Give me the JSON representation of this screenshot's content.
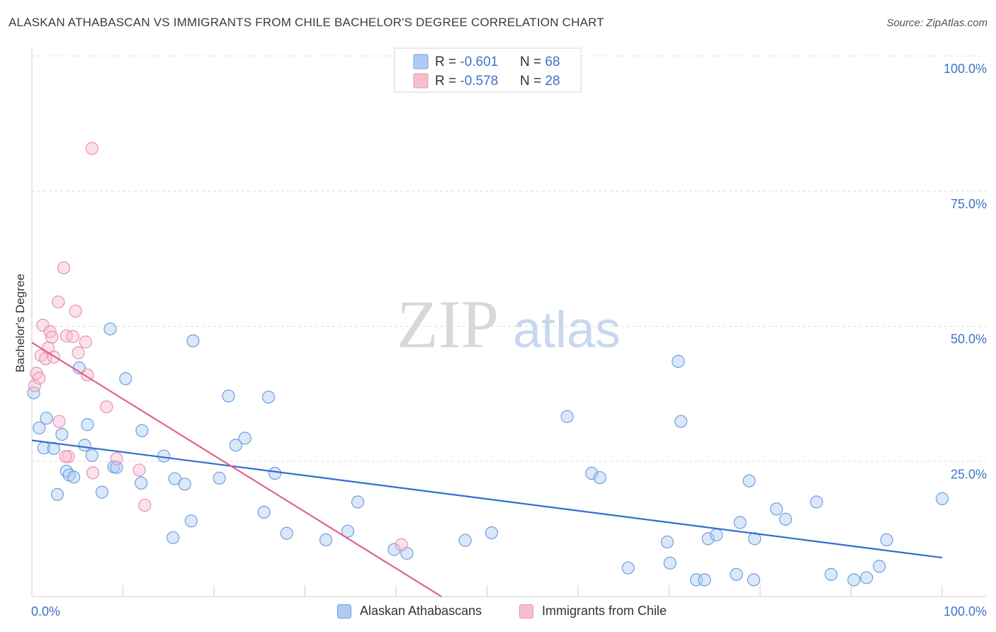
{
  "title": "ALASKAN ATHABASCAN VS IMMIGRANTS FROM CHILE BACHELOR'S DEGREE CORRELATION CHART",
  "source": "Source: ZipAtlas.com",
  "watermark": {
    "zip": "ZIP",
    "atlas": "atlas"
  },
  "colors": {
    "blue_fill": "#aecbf2",
    "blue_stroke": "#6d9fe0",
    "blue_line": "#2f6fce",
    "pink_fill": "#f6bfd0",
    "pink_stroke": "#e990ad",
    "pink_line": "#e0608e",
    "axis_text": "#3d74c8",
    "grid": "#dddddd"
  },
  "legend_top": {
    "rows": [
      {
        "r_label": "R = ",
        "r_value": "-0.601",
        "n_label": "N = ",
        "n_value": "68",
        "color": "blue"
      },
      {
        "r_label": "R = ",
        "r_value": "-0.578",
        "n_label": "N = ",
        "n_value": "28",
        "color": "pink"
      }
    ]
  },
  "legend_bottom": [
    {
      "label": "Alaskan Athabascans",
      "color": "blue"
    },
    {
      "label": "Immigrants from Chile",
      "color": "pink"
    }
  ],
  "chart_data": {
    "type": "scatter",
    "xlabel": "",
    "ylabel": "Bachelor's Degree",
    "xlim": [
      0,
      100
    ],
    "ylim": [
      0,
      100
    ],
    "x_tick_labels": [
      {
        "value": 0,
        "label": "0.0%"
      },
      {
        "value": 100,
        "label": "100.0%"
      }
    ],
    "y_tick_labels": [
      {
        "value": 100,
        "label": "100.0%"
      },
      {
        "value": 75,
        "label": "75.0%"
      },
      {
        "value": 50,
        "label": "50.0%"
      },
      {
        "value": 25,
        "label": "25.0%"
      }
    ],
    "grid": true,
    "series": [
      {
        "name": "Alaskan Athabascans",
        "color": "blue",
        "trend": {
          "x": [
            0,
            100
          ],
          "y": [
            28.9,
            7.2
          ]
        },
        "points": [
          [
            0.2,
            37.7
          ],
          [
            0.8,
            31.2
          ],
          [
            1.3,
            27.5
          ],
          [
            1.6,
            33.0
          ],
          [
            2.4,
            27.4
          ],
          [
            2.8,
            18.9
          ],
          [
            3.3,
            30.0
          ],
          [
            3.8,
            23.2
          ],
          [
            4.1,
            22.5
          ],
          [
            4.6,
            22.1
          ],
          [
            5.2,
            42.3
          ],
          [
            5.8,
            28.0
          ],
          [
            6.1,
            31.8
          ],
          [
            6.6,
            26.1
          ],
          [
            7.7,
            19.3
          ],
          [
            8.6,
            49.5
          ],
          [
            9.0,
            24.0
          ],
          [
            9.3,
            23.9
          ],
          [
            10.3,
            40.3
          ],
          [
            12.0,
            21.0
          ],
          [
            12.1,
            30.7
          ],
          [
            14.5,
            26.0
          ],
          [
            15.5,
            10.9
          ],
          [
            15.7,
            21.8
          ],
          [
            16.8,
            20.8
          ],
          [
            17.5,
            14.0
          ],
          [
            17.7,
            47.3
          ],
          [
            20.6,
            21.9
          ],
          [
            21.6,
            37.1
          ],
          [
            22.4,
            28.0
          ],
          [
            23.4,
            29.3
          ],
          [
            25.5,
            15.6
          ],
          [
            26.0,
            36.9
          ],
          [
            26.7,
            22.8
          ],
          [
            28.0,
            11.7
          ],
          [
            32.3,
            10.5
          ],
          [
            34.7,
            12.1
          ],
          [
            35.8,
            17.5
          ],
          [
            39.8,
            8.7
          ],
          [
            41.2,
            8.0
          ],
          [
            47.6,
            10.4
          ],
          [
            50.5,
            11.8
          ],
          [
            58.8,
            33.3
          ],
          [
            61.5,
            22.8
          ],
          [
            62.4,
            22.0
          ],
          [
            65.5,
            5.3
          ],
          [
            69.8,
            10.1
          ],
          [
            70.1,
            6.2
          ],
          [
            71.0,
            43.5
          ],
          [
            71.3,
            32.4
          ],
          [
            73.0,
            3.1
          ],
          [
            73.9,
            3.1
          ],
          [
            74.3,
            10.7
          ],
          [
            75.2,
            11.4
          ],
          [
            77.4,
            4.1
          ],
          [
            77.8,
            13.7
          ],
          [
            79.3,
            3.1
          ],
          [
            79.4,
            10.7
          ],
          [
            78.8,
            21.4
          ],
          [
            81.8,
            16.2
          ],
          [
            82.8,
            14.3
          ],
          [
            86.2,
            17.5
          ],
          [
            87.8,
            4.1
          ],
          [
            90.3,
            3.1
          ],
          [
            91.7,
            3.5
          ],
          [
            93.1,
            5.6
          ],
          [
            93.9,
            10.5
          ],
          [
            100.0,
            18.1
          ]
        ]
      },
      {
        "name": "Immigrants from Chile",
        "color": "pink",
        "trend": {
          "x": [
            0,
            45
          ],
          "y": [
            47.0,
            0
          ]
        },
        "points": [
          [
            0.3,
            39.0
          ],
          [
            0.5,
            41.3
          ],
          [
            0.8,
            40.4
          ],
          [
            1.0,
            44.6
          ],
          [
            1.2,
            50.2
          ],
          [
            1.5,
            44.0
          ],
          [
            1.8,
            46.0
          ],
          [
            2.0,
            49.0
          ],
          [
            2.2,
            48.0
          ],
          [
            2.4,
            44.3
          ],
          [
            2.9,
            54.5
          ],
          [
            3.0,
            32.4
          ],
          [
            3.5,
            60.8
          ],
          [
            3.8,
            48.2
          ],
          [
            4.0,
            25.9
          ],
          [
            4.5,
            48.1
          ],
          [
            4.8,
            52.8
          ],
          [
            5.1,
            45.1
          ],
          [
            5.9,
            47.1
          ],
          [
            6.1,
            41.0
          ],
          [
            6.7,
            22.9
          ],
          [
            6.6,
            82.9
          ],
          [
            8.2,
            35.1
          ],
          [
            9.3,
            25.5
          ],
          [
            11.8,
            23.4
          ],
          [
            12.4,
            16.9
          ],
          [
            40.6,
            9.6
          ],
          [
            3.7,
            25.9
          ]
        ]
      }
    ]
  }
}
